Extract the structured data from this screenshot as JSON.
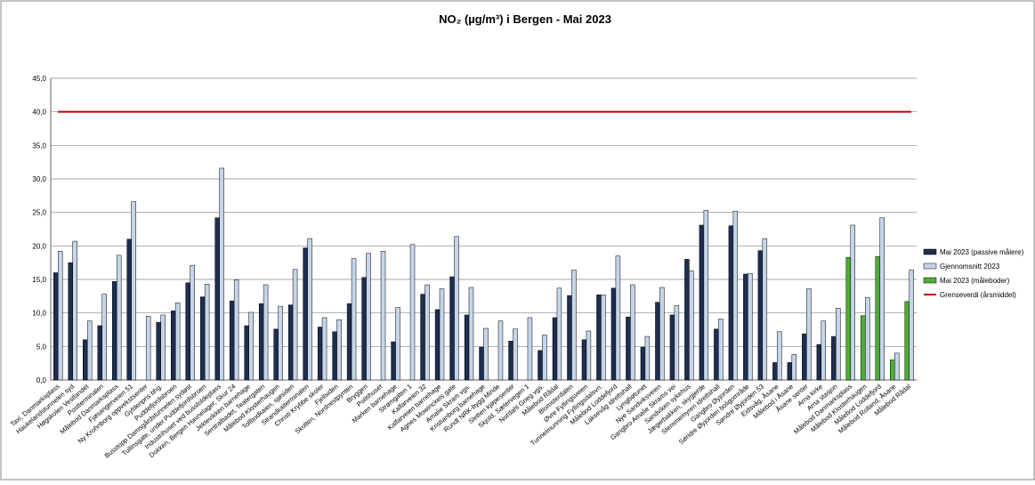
{
  "chart_data": {
    "type": "bar",
    "title": "NO₂ (µg/m³) i Bergen   -   Mai 2023",
    "categories": [
      "Taxi, Danmarksplass",
      "Haukelandstunnelen syd",
      "Høgskolen Vestlandet",
      "Postterminalen",
      "Målebod Danmarksplass",
      "Fjøsangerveien 51",
      "Ny Krohnborg oppvekstsenter",
      "Gyldenpris bhg.",
      "Puddefjordsbroen",
      "Busstopp Damsgårdstunnelen sydøst",
      "Tullinsgate, under Puddefjordsbroen",
      "Industrihuset ved busstoldeplass",
      "Dokken, Bergen Havnelager, Skur 24",
      "Jektevikken barnehage",
      "Sentralbadet, Teatergaten",
      "Målebod Klosterhaugen",
      "Tollbodkaien, sjøsiden",
      "Strandkaiterminalen",
      "Christi Krybbe skoler",
      "Fjellsiden",
      "Skolten, Nordnestpynten",
      "Bryggen",
      "Politihuset",
      "Marken barnehage",
      "Strømgaten 1",
      "Kalfarveien 32",
      "Kalfarveien barnehage",
      "Agnes Mowinckels gate",
      "Amalie Skram vgs.",
      "Kristianborg barnehage",
      "Rundt NRK-bygg Minde",
      "Sletten kjøpesenter",
      "Skjold, Sætervegen 1",
      "Nordahl Grieg vgs.",
      "Målebod Rådal",
      "Blomsterdalen",
      "Øvre Fyllingsveien",
      "Tunnelmunning Fyllingsdalsvn.",
      "Målebod Loddefjord",
      "Laksevåg idrettshall",
      "Lyngbøtunet",
      "Nye Sandviksveien",
      "Gangbro Amalie Skrams vei",
      "Sandviken sykehus",
      "Jægerbakken, skygjerde",
      "Stemmemyren idrettshall",
      "Gangbro Øyjorden",
      "Søndre Øyjorden boligområde",
      "Søndre Øyjorden 53",
      "Eidsvåg, Åsane",
      "Målebod i Åsane",
      "Åsane senter",
      "Arna kirke",
      "Arna stasjon",
      "Målebod Danmarksplass",
      "Målebod Klosterhaugen",
      "Målebod Loddefjord",
      "Målebod Rolland, Åsane",
      "Målebod Rådal"
    ],
    "series": [
      {
        "name": "Mai 2023 (passive målere)",
        "color": "#1f2d4e",
        "values": [
          16,
          17.5,
          6,
          8.1,
          14.7,
          21,
          null,
          8.6,
          10.3,
          14.5,
          12.4,
          24.2,
          11.8,
          8.1,
          11.4,
          7.6,
          11.2,
          19.7,
          7.9,
          7.2,
          11.4,
          15.3,
          null,
          5.7,
          null,
          12.8,
          10.5,
          15.4,
          9.7,
          4.9,
          null,
          5.8,
          null,
          4.4,
          9.3,
          12.6,
          6,
          12.7,
          13.7,
          9.4,
          4.9,
          11.6,
          9.7,
          18,
          23.1,
          7.6,
          23,
          15.8,
          19.3,
          2.6,
          2.6,
          6.9,
          5.3,
          6.5,
          null,
          null,
          null,
          null,
          null
        ]
      },
      {
        "name": "Gjennomsnitt 2023",
        "color": "#c5d5ea",
        "values": [
          19.2,
          20.7,
          8.8,
          12.8,
          18.6,
          26.6,
          9.5,
          9.7,
          11.5,
          17.1,
          14.3,
          31.6,
          14.9,
          10.1,
          14.2,
          11,
          16.5,
          21.1,
          9.3,
          9,
          18.1,
          18.9,
          19.2,
          10.8,
          20.2,
          14.2,
          13.6,
          21.4,
          13.8,
          7.7,
          8.8,
          7.6,
          9.3,
          6.7,
          13.7,
          16.4,
          7.3,
          12.7,
          18.5,
          14.2,
          6.5,
          13.8,
          11.1,
          16.3,
          25.3,
          9.1,
          25.2,
          15.9,
          21.1,
          7.2,
          3.8,
          13.6,
          8.8,
          10.7,
          23.1,
          12.3,
          24.2,
          4,
          16.4
        ]
      },
      {
        "name": "Mai 2023 (måleboder)",
        "color": "#4caf32",
        "values": [
          null,
          null,
          null,
          null,
          null,
          null,
          null,
          null,
          null,
          null,
          null,
          null,
          null,
          null,
          null,
          null,
          null,
          null,
          null,
          null,
          null,
          null,
          null,
          null,
          null,
          null,
          null,
          null,
          null,
          null,
          null,
          null,
          null,
          null,
          null,
          null,
          null,
          null,
          null,
          null,
          null,
          null,
          null,
          null,
          null,
          null,
          null,
          null,
          null,
          null,
          null,
          null,
          null,
          null,
          18.3,
          9.6,
          18.4,
          3,
          11.7
        ]
      }
    ],
    "reference_line": {
      "name": "Grenseverdi (årsmiddel)",
      "color": "#c00000",
      "value": 40
    },
    "ylim": [
      0,
      45
    ],
    "yticks": [
      {
        "value": 0,
        "label": "0,0"
      },
      {
        "value": 5,
        "label": "5,0"
      },
      {
        "value": 10,
        "label": "10,0"
      },
      {
        "value": 15,
        "label": "15,0"
      },
      {
        "value": 20,
        "label": "20,0"
      },
      {
        "value": 25,
        "label": "25,0"
      },
      {
        "value": 30,
        "label": "30,0"
      },
      {
        "value": 35,
        "label": "35,0"
      },
      {
        "value": 40,
        "label": "40,0"
      },
      {
        "value": 45,
        "label": "45,0"
      }
    ],
    "grid": true
  }
}
